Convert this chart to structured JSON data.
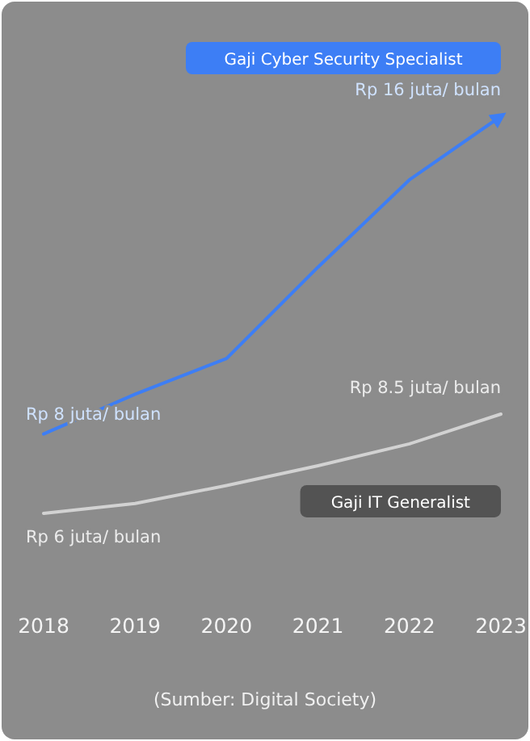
{
  "chart_data": {
    "type": "line",
    "categories": [
      "2018",
      "2019",
      "2020",
      "2021",
      "2022",
      "2023"
    ],
    "series": [
      {
        "name": "Gaji Cyber Security Specialist",
        "color": "#3d7ef5",
        "values": [
          8,
          9,
          9.9,
          12.2,
          14.4,
          16
        ],
        "value_labels": [
          "Rp 8 juta/ bulan",
          null,
          null,
          null,
          null,
          "Rp 16 juta/ bulan"
        ]
      },
      {
        "name": "Gaji IT Generalist",
        "color": "#d2d2d2",
        "values": [
          6,
          6.25,
          6.7,
          7.2,
          7.75,
          8.5
        ],
        "value_labels": [
          "Rp 6 juta/ bulan",
          null,
          null,
          null,
          null,
          "Rp 8.5 juta/ bulan"
        ]
      }
    ],
    "annotations": [
      "(Sumber: Digital Society)"
    ]
  }
}
